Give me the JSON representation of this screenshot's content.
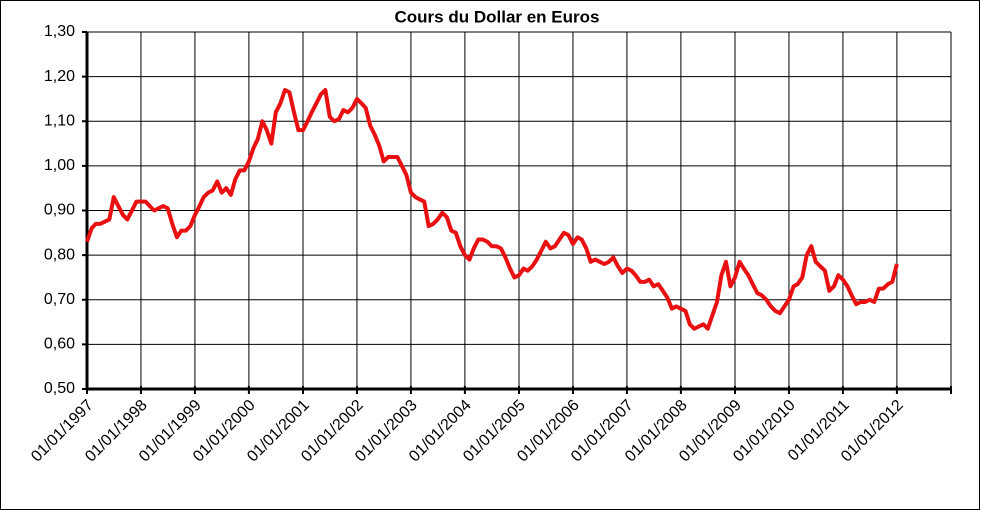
{
  "chart_data": {
    "type": "line",
    "title": "Cours du Dollar en Euros",
    "x": [
      "01/01/1997",
      "01/02/1997",
      "01/03/1997",
      "01/04/1997",
      "01/05/1997",
      "01/06/1997",
      "01/07/1997",
      "01/08/1997",
      "01/09/1997",
      "01/10/1997",
      "01/11/1997",
      "01/12/1997",
      "01/01/1998",
      "01/02/1998",
      "01/03/1998",
      "01/04/1998",
      "01/05/1998",
      "01/06/1998",
      "01/07/1998",
      "01/08/1998",
      "01/09/1998",
      "01/10/1998",
      "01/11/1998",
      "01/12/1998",
      "01/01/1999",
      "01/02/1999",
      "01/03/1999",
      "01/04/1999",
      "01/05/1999",
      "01/06/1999",
      "01/07/1999",
      "01/08/1999",
      "01/09/1999",
      "01/10/1999",
      "01/11/1999",
      "01/12/1999",
      "01/01/2000",
      "01/02/2000",
      "01/03/2000",
      "01/04/2000",
      "01/05/2000",
      "01/06/2000",
      "01/07/2000",
      "01/08/2000",
      "01/09/2000",
      "01/10/2000",
      "01/11/2000",
      "01/12/2000",
      "01/01/2001",
      "01/02/2001",
      "01/03/2001",
      "01/04/2001",
      "01/05/2001",
      "01/06/2001",
      "01/07/2001",
      "01/08/2001",
      "01/09/2001",
      "01/10/2001",
      "01/11/2001",
      "01/12/2001",
      "01/01/2002",
      "01/02/2002",
      "01/03/2002",
      "01/04/2002",
      "01/05/2002",
      "01/06/2002",
      "01/07/2002",
      "01/08/2002",
      "01/09/2002",
      "01/10/2002",
      "01/11/2002",
      "01/12/2002",
      "01/01/2003",
      "01/02/2003",
      "01/03/2003",
      "01/04/2003",
      "01/05/2003",
      "01/06/2003",
      "01/07/2003",
      "01/08/2003",
      "01/09/2003",
      "01/10/2003",
      "01/11/2003",
      "01/12/2003",
      "01/01/2004",
      "01/02/2004",
      "01/03/2004",
      "01/04/2004",
      "01/05/2004",
      "01/06/2004",
      "01/07/2004",
      "01/08/2004",
      "01/09/2004",
      "01/10/2004",
      "01/11/2004",
      "01/12/2004",
      "01/01/2005",
      "01/02/2005",
      "01/03/2005",
      "01/04/2005",
      "01/05/2005",
      "01/06/2005",
      "01/07/2005",
      "01/08/2005",
      "01/09/2005",
      "01/10/2005",
      "01/11/2005",
      "01/12/2005",
      "01/01/2006",
      "01/02/2006",
      "01/03/2006",
      "01/04/2006",
      "01/05/2006",
      "01/06/2006",
      "01/07/2006",
      "01/08/2006",
      "01/09/2006",
      "01/10/2006",
      "01/11/2006",
      "01/12/2006",
      "01/01/2007",
      "01/02/2007",
      "01/03/2007",
      "01/04/2007",
      "01/05/2007",
      "01/06/2007",
      "01/07/2007",
      "01/08/2007",
      "01/09/2007",
      "01/10/2007",
      "01/11/2007",
      "01/12/2007",
      "01/01/2008",
      "01/02/2008",
      "01/03/2008",
      "01/04/2008",
      "01/05/2008",
      "01/06/2008",
      "01/07/2008",
      "01/08/2008",
      "01/09/2008",
      "01/10/2008",
      "01/11/2008",
      "01/12/2008",
      "01/01/2009",
      "01/02/2009",
      "01/03/2009",
      "01/04/2009",
      "01/05/2009",
      "01/06/2009",
      "01/07/2009",
      "01/08/2009",
      "01/09/2009",
      "01/10/2009",
      "01/11/2009",
      "01/12/2009",
      "01/01/2010",
      "01/02/2010",
      "01/03/2010",
      "01/04/2010",
      "01/05/2010",
      "01/06/2010",
      "01/07/2010",
      "01/08/2010",
      "01/09/2010",
      "01/10/2010",
      "01/11/2010",
      "01/12/2010",
      "01/01/2011",
      "01/02/2011",
      "01/03/2011",
      "01/04/2011",
      "01/05/2011",
      "01/06/2011",
      "01/07/2011",
      "01/08/2011",
      "01/09/2011",
      "01/10/2011",
      "01/11/2011",
      "01/12/2011",
      "01/01/2012"
    ],
    "series": [
      {
        "color": "#e81010",
        "values": [
          0.83,
          0.86,
          0.87,
          0.87,
          0.875,
          0.88,
          0.93,
          0.91,
          0.89,
          0.88,
          0.9,
          0.92,
          0.92,
          0.92,
          0.91,
          0.9,
          0.905,
          0.91,
          0.905,
          0.87,
          0.84,
          0.855,
          0.855,
          0.865,
          0.89,
          0.91,
          0.93,
          0.94,
          0.945,
          0.965,
          0.94,
          0.95,
          0.935,
          0.97,
          0.99,
          0.99,
          1.01,
          1.04,
          1.06,
          1.1,
          1.08,
          1.05,
          1.12,
          1.14,
          1.17,
          1.165,
          1.12,
          1.08,
          1.08,
          1.1,
          1.12,
          1.14,
          1.16,
          1.17,
          1.11,
          1.1,
          1.105,
          1.125,
          1.12,
          1.13,
          1.15,
          1.14,
          1.13,
          1.09,
          1.07,
          1.045,
          1.01,
          1.02,
          1.02,
          1.02,
          1.0,
          0.98,
          0.94,
          0.93,
          0.925,
          0.92,
          0.865,
          0.87,
          0.88,
          0.895,
          0.885,
          0.855,
          0.85,
          0.82,
          0.8,
          0.79,
          0.815,
          0.835,
          0.835,
          0.83,
          0.82,
          0.82,
          0.815,
          0.795,
          0.77,
          0.75,
          0.755,
          0.77,
          0.765,
          0.775,
          0.79,
          0.81,
          0.83,
          0.815,
          0.82,
          0.835,
          0.85,
          0.845,
          0.825,
          0.84,
          0.835,
          0.815,
          0.785,
          0.79,
          0.785,
          0.78,
          0.785,
          0.795,
          0.775,
          0.76,
          0.77,
          0.765,
          0.755,
          0.74,
          0.74,
          0.745,
          0.73,
          0.735,
          0.72,
          0.705,
          0.68,
          0.685,
          0.68,
          0.675,
          0.645,
          0.635,
          0.64,
          0.645,
          0.635,
          0.665,
          0.695,
          0.755,
          0.785,
          0.73,
          0.75,
          0.785,
          0.77,
          0.755,
          0.735,
          0.715,
          0.71,
          0.7,
          0.685,
          0.675,
          0.67,
          0.685,
          0.7,
          0.73,
          0.735,
          0.75,
          0.8,
          0.82,
          0.785,
          0.775,
          0.765,
          0.72,
          0.73,
          0.755,
          0.745,
          0.73,
          0.71,
          0.69,
          0.695,
          0.695,
          0.7,
          0.695,
          0.725,
          0.725,
          0.735,
          0.74,
          0.78
        ]
      }
    ],
    "xlim": [
      "01/01/1997",
      "01/01/2013"
    ],
    "xticks": [
      "01/01/1997",
      "01/01/1998",
      "01/01/1999",
      "01/01/2000",
      "01/01/2001",
      "01/01/2002",
      "01/01/2003",
      "01/01/2004",
      "01/01/2005",
      "01/01/2006",
      "01/01/2007",
      "01/01/2008",
      "01/01/2009",
      "01/01/2010",
      "01/01/2011",
      "01/01/2012"
    ],
    "ylim": [
      0.5,
      1.3
    ],
    "yticks": [
      {
        "value": 0.5,
        "label": "0,50"
      },
      {
        "value": 0.6,
        "label": "0,60"
      },
      {
        "value": 0.7,
        "label": "0,70"
      },
      {
        "value": 0.8,
        "label": "0,80"
      },
      {
        "value": 0.9,
        "label": "0,90"
      },
      {
        "value": 1.0,
        "label": "1,00"
      },
      {
        "value": 1.1,
        "label": "1,10"
      },
      {
        "value": 1.2,
        "label": "1,20"
      },
      {
        "value": 1.3,
        "label": "1,30"
      }
    ],
    "grid": true
  }
}
